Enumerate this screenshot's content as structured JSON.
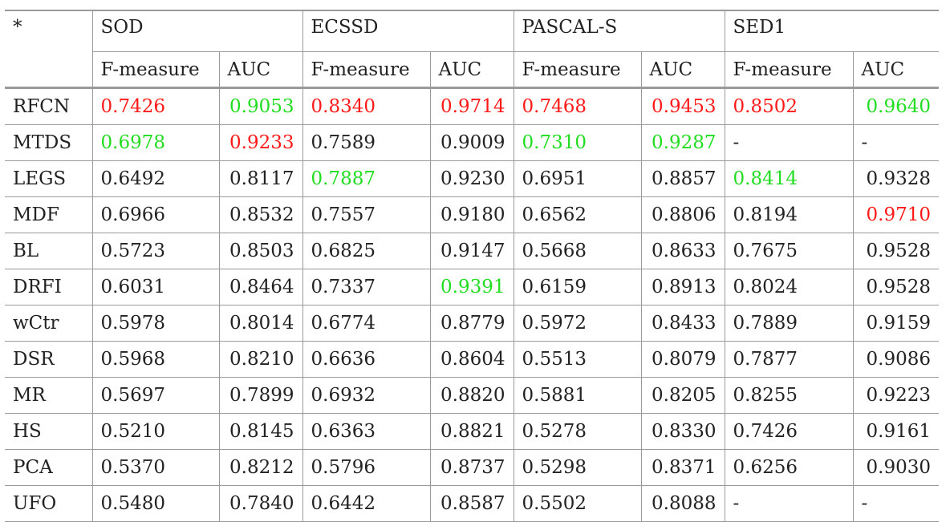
{
  "chart_data": {
    "type": "table",
    "corner": "*",
    "datasets": [
      "SOD",
      "ECSSD",
      "PASCAL-S",
      "SED1"
    ],
    "metrics": [
      "F-measure",
      "AUC"
    ],
    "colors": {
      "best": "#ff1a1a",
      "second": "#22dd22"
    },
    "rows": [
      {
        "method": "RFCN",
        "values": [
          "0.7426",
          "0.9053",
          "0.8340",
          "0.9714",
          "0.7468",
          "0.9453",
          "0.8502",
          "0.9640"
        ],
        "hl": [
          "r",
          "g",
          "r",
          "r",
          "r",
          "r",
          "r",
          "g"
        ]
      },
      {
        "method": "MTDS",
        "values": [
          "0.6978",
          "0.9233",
          "0.7589",
          "0.9009",
          "0.7310",
          "0.9287",
          "-",
          "-"
        ],
        "hl": [
          "g",
          "r",
          "",
          "",
          "g",
          "g",
          "",
          ""
        ]
      },
      {
        "method": "LEGS",
        "values": [
          "0.6492",
          "0.8117",
          "0.7887",
          "0.9230",
          "0.6951",
          "0.8857",
          "0.8414",
          "0.9328"
        ],
        "hl": [
          "",
          "",
          "g",
          "",
          "",
          "",
          "g",
          ""
        ]
      },
      {
        "method": "MDF",
        "values": [
          "0.6966",
          "0.8532",
          "0.7557",
          "0.9180",
          "0.6562",
          "0.8806",
          "0.8194",
          "0.9710"
        ],
        "hl": [
          "",
          "",
          "",
          "",
          "",
          "",
          "",
          "r"
        ]
      },
      {
        "method": "BL",
        "values": [
          "0.5723",
          "0.8503",
          "0.6825",
          "0.9147",
          "0.5668",
          "0.8633",
          "0.7675",
          "0.9528"
        ],
        "hl": [
          "",
          "",
          "",
          "",
          "",
          "",
          "",
          ""
        ]
      },
      {
        "method": "DRFI",
        "values": [
          "0.6031",
          "0.8464",
          "0.7337",
          "0.9391",
          "0.6159",
          "0.8913",
          "0.8024",
          "0.9528"
        ],
        "hl": [
          "",
          "",
          "",
          "g",
          "",
          "",
          "",
          ""
        ]
      },
      {
        "method": "wCtr",
        "values": [
          "0.5978",
          "0.8014",
          "0.6774",
          "0.8779",
          "0.5972",
          "0.8433",
          "0.7889",
          "0.9159"
        ],
        "hl": [
          "",
          "",
          "",
          "",
          "",
          "",
          "",
          ""
        ]
      },
      {
        "method": "DSR",
        "values": [
          "0.5968",
          "0.8210",
          "0.6636",
          "0.8604",
          "0.5513",
          "0.8079",
          "0.7877",
          "0.9086"
        ],
        "hl": [
          "",
          "",
          "",
          "",
          "",
          "",
          "",
          ""
        ]
      },
      {
        "method": "MR",
        "values": [
          "0.5697",
          "0.7899",
          "0.6932",
          "0.8820",
          "0.5881",
          "0.8205",
          "0.8255",
          "0.9223"
        ],
        "hl": [
          "",
          "",
          "",
          "",
          "",
          "",
          "",
          ""
        ]
      },
      {
        "method": "HS",
        "values": [
          "0.5210",
          "0.8145",
          "0.6363",
          "0.8821",
          "0.5278",
          "0.8330",
          "0.7426",
          "0.9161"
        ],
        "hl": [
          "",
          "",
          "",
          "",
          "",
          "",
          "",
          ""
        ]
      },
      {
        "method": "PCA",
        "values": [
          "0.5370",
          "0.8212",
          "0.5796",
          "0.8737",
          "0.5298",
          "0.8371",
          "0.6256",
          "0.9030"
        ],
        "hl": [
          "",
          "",
          "",
          "",
          "",
          "",
          "",
          ""
        ]
      },
      {
        "method": "UFO",
        "values": [
          "0.5480",
          "0.7840",
          "0.6442",
          "0.8587",
          "0.5502",
          "0.8088",
          "-",
          "-"
        ],
        "hl": [
          "",
          "",
          "",
          "",
          "",
          "",
          "",
          ""
        ]
      }
    ]
  }
}
